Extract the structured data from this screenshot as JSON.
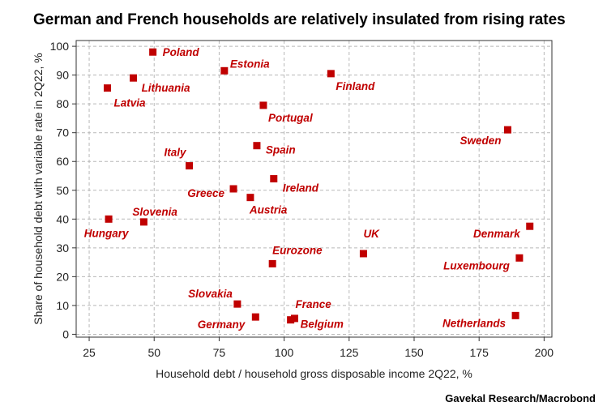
{
  "title": "German and French households are relatively insulated from rising rates",
  "source": "Gavekal Research/Macrobond",
  "colors": {
    "marker": "#c00000",
    "label": "#c00000",
    "grid": "#b8b8b8",
    "axis": "#333333"
  },
  "chart_data": {
    "type": "scatter",
    "xlabel": "Household debt / household gross disposable income 2Q22, %",
    "ylabel": "Share of household debt with variable rate in 2Q22, %",
    "xlim": [
      20,
      203
    ],
    "ylim": [
      -1,
      102
    ],
    "xticks": [
      25,
      50,
      75,
      100,
      125,
      150,
      175,
      200
    ],
    "yticks": [
      0,
      10,
      20,
      30,
      40,
      50,
      60,
      70,
      80,
      90,
      100
    ],
    "grid": true,
    "points": [
      {
        "label": "Poland",
        "x": 49.5,
        "y": 98
      },
      {
        "label": "Estonia",
        "x": 77,
        "y": 91.5
      },
      {
        "label": "Lithuania",
        "x": 42,
        "y": 89
      },
      {
        "label": "Finland",
        "x": 118,
        "y": 90.5
      },
      {
        "label": "Latvia",
        "x": 32,
        "y": 85.5
      },
      {
        "label": "Portugal",
        "x": 92,
        "y": 79.5
      },
      {
        "label": "Sweden",
        "x": 186,
        "y": 71
      },
      {
        "label": "Spain",
        "x": 89.5,
        "y": 65.5
      },
      {
        "label": "Italy",
        "x": 63.5,
        "y": 58.5
      },
      {
        "label": "Ireland",
        "x": 96,
        "y": 54
      },
      {
        "label": "Greece",
        "x": 80.5,
        "y": 50.5
      },
      {
        "label": "Austria",
        "x": 87,
        "y": 47.5
      },
      {
        "label": "Hungary",
        "x": 32.5,
        "y": 40
      },
      {
        "label": "Slovenia",
        "x": 46,
        "y": 39
      },
      {
        "label": "Denmark",
        "x": 194.5,
        "y": 37.5
      },
      {
        "label": "UK",
        "x": 130.5,
        "y": 28
      },
      {
        "label": "Luxembourg",
        "x": 190.5,
        "y": 26.5
      },
      {
        "label": "Eurozone",
        "x": 95.5,
        "y": 24.5
      },
      {
        "label": "Slovakia",
        "x": 82,
        "y": 10.5
      },
      {
        "label": "Germany",
        "x": 89,
        "y": 6
      },
      {
        "label": "France",
        "x": 104,
        "y": 5.5
      },
      {
        "label": "Belgium",
        "x": 102.5,
        "y": 5
      },
      {
        "label": "Netherlands",
        "x": 189,
        "y": 6.5
      }
    ]
  }
}
